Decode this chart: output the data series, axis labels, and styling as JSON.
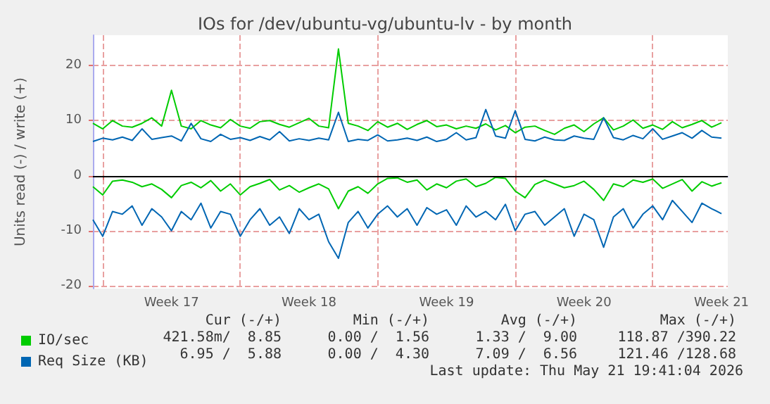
{
  "chart_data": {
    "type": "line",
    "title": "IOs for /dev/ubuntu-vg/ubuntu-lv - by month",
    "ylabel": "Units read (-) / write (+)",
    "x": [
      "2026-04-19T12:00",
      "2026-04-20T00:00",
      "2026-04-20T12:00",
      "2026-04-21T00:00",
      "2026-04-21T12:00",
      "2026-04-22T00:00",
      "2026-04-22T12:00",
      "2026-04-23T00:00",
      "2026-04-23T12:00",
      "2026-04-24T00:00",
      "2026-04-24T12:00",
      "2026-04-25T00:00",
      "2026-04-25T12:00",
      "2026-04-26T00:00",
      "2026-04-26T12:00",
      "2026-04-27T00:00",
      "2026-04-27T12:00",
      "2026-04-28T00:00",
      "2026-04-28T12:00",
      "2026-04-29T00:00",
      "2026-04-29T12:00",
      "2026-04-30T00:00",
      "2026-04-30T12:00",
      "2026-05-01T00:00",
      "2026-05-01T12:00",
      "2026-05-02T00:00",
      "2026-05-02T12:00",
      "2026-05-03T00:00",
      "2026-05-03T12:00",
      "2026-05-04T00:00",
      "2026-05-04T12:00",
      "2026-05-05T00:00",
      "2026-05-05T12:00",
      "2026-05-06T00:00",
      "2026-05-06T12:00",
      "2026-05-07T00:00",
      "2026-05-07T12:00",
      "2026-05-08T00:00",
      "2026-05-08T12:00",
      "2026-05-09T00:00",
      "2026-05-09T12:00",
      "2026-05-10T00:00",
      "2026-05-10T12:00",
      "2026-05-11T00:00",
      "2026-05-11T12:00",
      "2026-05-12T00:00",
      "2026-05-12T12:00",
      "2026-05-13T00:00",
      "2026-05-13T12:00",
      "2026-05-14T00:00",
      "2026-05-14T12:00",
      "2026-05-15T00:00",
      "2026-05-15T12:00",
      "2026-05-16T00:00",
      "2026-05-16T12:00",
      "2026-05-17T00:00",
      "2026-05-17T12:00",
      "2026-05-18T00:00",
      "2026-05-18T12:00",
      "2026-05-19T00:00",
      "2026-05-19T12:00",
      "2026-05-20T00:00",
      "2026-05-20T12:00",
      "2026-05-21T00:00",
      "2026-05-21T12:00"
    ],
    "series": [
      {
        "name": "IO/sec",
        "color": "#00cc00",
        "values": [
          9.5,
          8.5,
          10,
          9,
          8.8,
          9.5,
          10.5,
          9,
          15.5,
          9,
          8.5,
          10,
          9.2,
          8.7,
          10.2,
          9,
          8.6,
          9.8,
          10,
          9.3,
          8.8,
          9.6,
          10.4,
          9,
          8.7,
          23,
          9.5,
          9,
          8.2,
          9.8,
          8.8,
          9.5,
          8.4,
          9.3,
          10,
          8.9,
          9.2,
          8.5,
          9,
          8.6,
          9.4,
          8.3,
          9.1,
          7.8,
          8.8,
          9,
          8.2,
          7.5,
          8.6,
          9.2,
          8,
          9.4,
          10.5,
          8.3,
          9,
          10.1,
          8.6,
          9.2,
          8.4,
          9.8,
          8.7,
          9.3,
          10,
          8.8,
          9.6
        ]
      },
      {
        "color": "#00cc00",
        "values": [
          -2,
          -3.5,
          -1,
          -0.8,
          -1.2,
          -2,
          -1.5,
          -2.5,
          -4,
          -1.8,
          -1.2,
          -2.2,
          -0.9,
          -2.8,
          -1.5,
          -3.5,
          -2,
          -1.4,
          -0.7,
          -2.6,
          -1.8,
          -3,
          -2.2,
          -1.5,
          -2.4,
          -6,
          -2.8,
          -2,
          -3.2,
          -1.5,
          -0.5,
          -0.4,
          -1.2,
          -0.8,
          -2.6,
          -1.5,
          -2.2,
          -1,
          -0.6,
          -2,
          -1.4,
          -0.3,
          -0.5,
          -2.8,
          -4,
          -1.6,
          -0.8,
          -1.5,
          -2.2,
          -1.8,
          -1,
          -2.5,
          -4.5,
          -1.5,
          -2,
          -0.8,
          -1.2,
          -0.6,
          -2.3,
          -1.5,
          -0.7,
          -2.8,
          -1.1,
          -1.9,
          -1.3
        ]
      },
      {
        "name": "Req Size (KB)",
        "color": "#0066b3",
        "values": [
          6.2,
          6.8,
          6.5,
          7,
          6.4,
          8.5,
          6.6,
          6.9,
          7.2,
          6.3,
          9.5,
          6.7,
          6.2,
          7.5,
          6.6,
          6.9,
          6.4,
          7.1,
          6.5,
          8,
          6.3,
          6.7,
          6.4,
          6.8,
          6.5,
          11.5,
          6.2,
          6.6,
          6.4,
          7.4,
          6.3,
          6.5,
          6.8,
          6.4,
          7,
          6.2,
          6.6,
          7.8,
          6.5,
          6.9,
          12,
          7.2,
          6.8,
          11.8,
          6.6,
          6.3,
          7,
          6.5,
          6.4,
          7.2,
          6.8,
          6.6,
          10.5,
          6.9,
          6.5,
          7.3,
          6.7,
          8.5,
          6.6,
          7.2,
          7.8,
          6.8,
          8.2,
          7,
          6.8
        ]
      },
      {
        "color": "#0066b3",
        "values": [
          -8,
          -11,
          -6.5,
          -7,
          -5.5,
          -9,
          -6,
          -7.5,
          -10,
          -6.5,
          -8,
          -5,
          -9.5,
          -6.5,
          -7,
          -11,
          -8,
          -6,
          -9,
          -7.5,
          -10.5,
          -6,
          -8,
          -7,
          -12,
          -15,
          -8.5,
          -6.5,
          -9.5,
          -7,
          -5.5,
          -7.5,
          -6,
          -9,
          -5.8,
          -7,
          -6.2,
          -9,
          -5.5,
          -7.5,
          -6.5,
          -8,
          -5.2,
          -10,
          -7,
          -6.5,
          -9,
          -7.5,
          -6,
          -11,
          -7,
          -8,
          -13,
          -7.5,
          -6,
          -9.5,
          -7,
          -5.5,
          -8,
          -4.5,
          -6.5,
          -8.5,
          -5,
          -6,
          -6.9
        ]
      }
    ],
    "xlim": [
      "2026-04-19T12:00",
      "2026-05-21T19:40"
    ],
    "xticks": [
      {
        "value": "2026-04-20T00:00",
        "label": null
      },
      {
        "value": "2026-04-23T12:00",
        "label": "Week 17"
      },
      {
        "value": "2026-04-27T00:00",
        "label": null
      },
      {
        "value": "2026-04-30T12:00",
        "label": "Week 18"
      },
      {
        "value": "2026-05-04T00:00",
        "label": null
      },
      {
        "value": "2026-05-07T12:00",
        "label": "Week 19"
      },
      {
        "value": "2026-05-11T00:00",
        "label": null
      },
      {
        "value": "2026-05-14T12:00",
        "label": "Week 20"
      },
      {
        "value": "2026-05-18T00:00",
        "label": null
      },
      {
        "value": "2026-05-21T12:00",
        "label": "Week 21"
      }
    ],
    "ylim": [
      -20.5,
      25.5
    ],
    "yticks": [
      -20,
      -10,
      0,
      10,
      20
    ],
    "ref_lines": [
      {
        "axis": "y",
        "value": 0,
        "color": "#000000"
      }
    ],
    "grid": true,
    "legend": "bottom left",
    "marker": "none",
    "line_style": "solid",
    "annotations": [
      "Cur (-/+)",
      "Min (-/+)",
      "Avg (-/+)",
      "Max (-/+)",
      "421.58m/  8.85",
      "0.00 /  1.56",
      "1.33 /  9.00",
      "118.87 /390.22",
      "6.95 /  5.88",
      "0.00 /  4.30",
      "7.09 /  6.56",
      "121.46 /128.68",
      "Last update: Thu May 21 19:41:04 2026"
    ]
  }
}
